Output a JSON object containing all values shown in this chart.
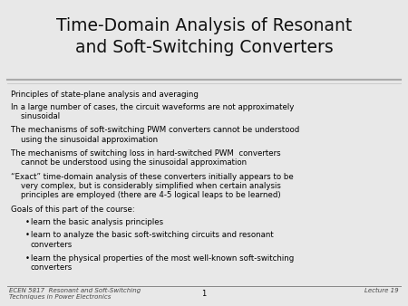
{
  "title_line1": "Time-Domain Analysis of Resonant",
  "title_line2": "and Soft-Switching Converters",
  "title_fontsize": 13.5,
  "title_color": "#111111",
  "background_color": "#e8e8e8",
  "slide_bg": "#f5f5f5",
  "footer_left": "ECEN 5817  Resonant and Soft-Switching\nTechniques in Power Electronics",
  "footer_center": "1",
  "footer_right": "Lecture 19",
  "body_fontsize": 6.2,
  "footer_fontsize": 5.0,
  "body_lines": [
    {
      "text": "Principles of state-plane analysis and averaging",
      "indent": 0,
      "bullet": false,
      "nlines": 1
    },
    {
      "text": "In a large number of cases, the circuit waveforms are not approximately\n    sinusoidal",
      "indent": 0,
      "bullet": false,
      "nlines": 2
    },
    {
      "text": "The mechanisms of soft-switching PWM converters cannot be understood\n    using the sinusoidal approximation",
      "indent": 0,
      "bullet": false,
      "nlines": 2
    },
    {
      "text": "The mechanisms of switching loss in hard-switched PWM  converters\n    cannot be understood using the sinusoidal approximation",
      "indent": 0,
      "bullet": false,
      "nlines": 2
    },
    {
      "text": "“Exact” time-domain analysis of these converters initially appears to be\n    very complex, but is considerably simplified when certain analysis\n    principles are employed (there are 4-5 logical leaps to be learned)",
      "indent": 0,
      "bullet": false,
      "nlines": 3
    },
    {
      "text": "Goals of this part of the course:",
      "indent": 0,
      "bullet": false,
      "nlines": 1
    },
    {
      "text": "learn the basic analysis principles",
      "indent": 1,
      "bullet": true,
      "nlines": 1
    },
    {
      "text": "learn to analyze the basic soft-switching circuits and resonant\nconverters",
      "indent": 1,
      "bullet": true,
      "nlines": 2
    },
    {
      "text": "learn the physical properties of the most well-known soft-switching\nconverters",
      "indent": 1,
      "bullet": true,
      "nlines": 2
    }
  ]
}
